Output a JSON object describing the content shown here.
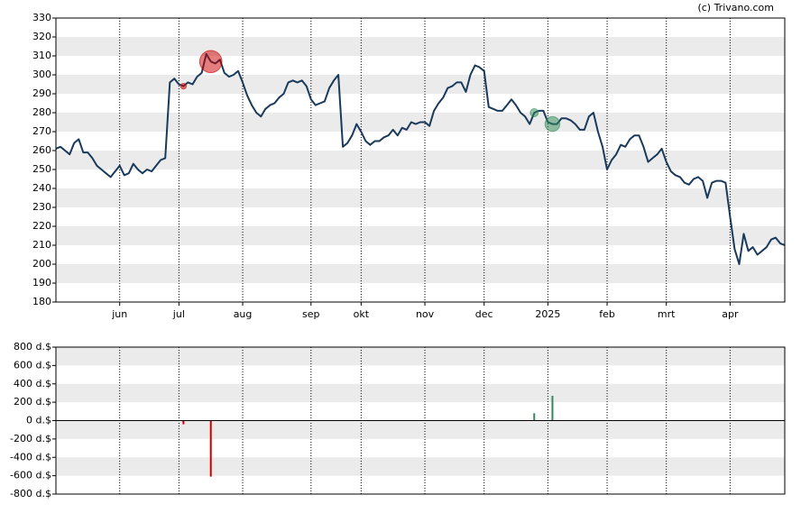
{
  "chart_data": [
    {
      "type": "line",
      "title": "(c) Trivano.com",
      "categories": [
        null,
        null,
        null,
        null,
        null,
        null,
        null,
        null,
        null,
        null,
        null,
        null,
        null,
        null,
        "jun",
        null,
        null,
        null,
        null,
        null,
        null,
        null,
        null,
        null,
        null,
        null,
        null,
        "jul",
        null,
        null,
        null,
        null,
        null,
        null,
        null,
        null,
        null,
        null,
        null,
        null,
        null,
        "aug",
        null,
        null,
        null,
        null,
        null,
        null,
        null,
        null,
        null,
        null,
        null,
        null,
        null,
        null,
        "sep",
        null,
        null,
        null,
        null,
        null,
        null,
        null,
        null,
        null,
        null,
        "okt",
        null,
        null,
        null,
        null,
        null,
        null,
        null,
        null,
        null,
        null,
        null,
        null,
        null,
        "nov",
        null,
        null,
        null,
        null,
        null,
        null,
        null,
        null,
        null,
        null,
        null,
        null,
        "dec",
        null,
        null,
        null,
        null,
        null,
        null,
        null,
        null,
        null,
        null,
        null,
        null,
        null,
        "2025",
        null,
        null,
        null,
        null,
        null,
        null,
        null,
        null,
        null,
        null,
        null,
        null,
        "feb",
        null,
        null,
        null,
        null,
        null,
        null,
        null,
        null,
        null,
        null,
        null,
        null,
        "mrt",
        null,
        null,
        null,
        null,
        null,
        null,
        null,
        null,
        null,
        null,
        null,
        null,
        null,
        "apr",
        null,
        null,
        null,
        null,
        null,
        null,
        null,
        null,
        null,
        null,
        null,
        null
      ],
      "series": [
        {
          "color": "#1a3a5c",
          "values": [
            261,
            262,
            260,
            258,
            264,
            266,
            259,
            259,
            256,
            252,
            250,
            248,
            246,
            249,
            252,
            247,
            248,
            253,
            250,
            248,
            250,
            249,
            252,
            255,
            256,
            296,
            298,
            295,
            294,
            296,
            295,
            299,
            301,
            311,
            307,
            306,
            308,
            301,
            299,
            300,
            302,
            296,
            289,
            284,
            280,
            278,
            282,
            284,
            285,
            288,
            290,
            296,
            297,
            296,
            297,
            294,
            287,
            284,
            285,
            286,
            293,
            297,
            300,
            262,
            264,
            268,
            274,
            270,
            265,
            263,
            265,
            265,
            267,
            268,
            271,
            268,
            272,
            271,
            275,
            274,
            275,
            275,
            273,
            281,
            285,
            288,
            293,
            294,
            296,
            296,
            291,
            300,
            305,
            304,
            302,
            283,
            282,
            281,
            281,
            284,
            287,
            284,
            280,
            278,
            274,
            280,
            281,
            281,
            275,
            274,
            274,
            277,
            277,
            276,
            274,
            271,
            271,
            278,
            280,
            270,
            262,
            250,
            255,
            258,
            263,
            262,
            266,
            268,
            268,
            262,
            254,
            256,
            258,
            261,
            254,
            249,
            247,
            246,
            243,
            242,
            245,
            246,
            244,
            235,
            243,
            244,
            244,
            243,
            225,
            208,
            200,
            216,
            207,
            209,
            205,
            207,
            209,
            213,
            214,
            211,
            210
          ]
        }
      ],
      "ylim": [
        180,
        330
      ],
      "yticks": [
        180,
        190,
        200,
        210,
        220,
        230,
        240,
        250,
        260,
        270,
        280,
        290,
        300,
        310,
        320,
        330
      ],
      "grid": true
    },
    {
      "type": "bar",
      "categories": [
        null,
        null,
        null,
        null,
        null,
        null,
        null,
        null,
        null,
        null,
        null,
        null,
        null,
        null,
        "jun",
        null,
        null,
        null,
        null,
        null,
        null,
        null,
        null,
        null,
        null,
        null,
        null,
        "jul",
        null,
        null,
        null,
        null,
        null,
        null,
        null,
        null,
        null,
        null,
        null,
        null,
        null,
        "aug",
        null,
        null,
        null,
        null,
        null,
        null,
        null,
        null,
        null,
        null,
        null,
        null,
        null,
        null,
        "sep",
        null,
        null,
        null,
        null,
        null,
        null,
        null,
        null,
        null,
        null,
        "okt",
        null,
        null,
        null,
        null,
        null,
        null,
        null,
        null,
        null,
        null,
        null,
        null,
        null,
        "nov",
        null,
        null,
        null,
        null,
        null,
        null,
        null,
        null,
        null,
        null,
        null,
        null,
        "dec",
        null,
        null,
        null,
        null,
        null,
        null,
        null,
        null,
        null,
        null,
        null,
        null,
        null,
        "2025",
        null,
        null,
        null,
        null,
        null,
        null,
        null,
        null,
        null,
        null,
        null,
        null,
        "feb",
        null,
        null,
        null,
        null,
        null,
        null,
        null,
        null,
        null,
        null,
        null,
        null,
        "mrt",
        null,
        null,
        null,
        null,
        null,
        null,
        null,
        null,
        null,
        null,
        null,
        null,
        null,
        "apr",
        null,
        null,
        null,
        null,
        null,
        null,
        null,
        null,
        null,
        null,
        null,
        null
      ],
      "values": [
        null,
        null,
        null,
        null,
        null,
        null,
        null,
        null,
        null,
        null,
        null,
        null,
        null,
        null,
        null,
        null,
        null,
        null,
        null,
        null,
        null,
        null,
        null,
        null,
        null,
        null,
        null,
        null,
        -40,
        null,
        null,
        null,
        null,
        null,
        -610,
        null,
        null,
        null,
        null,
        null,
        null,
        null,
        null,
        null,
        null,
        null,
        null,
        null,
        null,
        null,
        null,
        null,
        null,
        null,
        null,
        null,
        null,
        null,
        null,
        null,
        null,
        null,
        null,
        null,
        null,
        null,
        null,
        null,
        null,
        null,
        null,
        null,
        null,
        null,
        null,
        null,
        null,
        null,
        null,
        null,
        null,
        null,
        null,
        null,
        null,
        null,
        null,
        null,
        null,
        null,
        null,
        null,
        null,
        null,
        null,
        null,
        null,
        null,
        null,
        null,
        null,
        null,
        null,
        null,
        null,
        80,
        null,
        null,
        null,
        270,
        null,
        null,
        null,
        null,
        null,
        null,
        null,
        null,
        null,
        null,
        null,
        null,
        null,
        null,
        null,
        null,
        null,
        null,
        null,
        null,
        null,
        null,
        null,
        null,
        null,
        null,
        null,
        null,
        null,
        null,
        null,
        null,
        null,
        null,
        null,
        null,
        null,
        null,
        null,
        null,
        null,
        null,
        null,
        null,
        null,
        null,
        null,
        null,
        null,
        null,
        null
      ],
      "positive_color": "#2e8b57",
      "negative_color": "#cc0000",
      "ylim": [
        -800,
        800
      ],
      "yticks": [
        {
          "value": -800,
          "label": "-800 d.$"
        },
        {
          "value": -600,
          "label": "-600 d.$"
        },
        {
          "value": -400,
          "label": "-400 d.$"
        },
        {
          "value": -200,
          "label": "-200 d.$"
        },
        {
          "value": 0,
          "label": "0 d.$"
        },
        {
          "value": 200,
          "label": "200 d.$"
        },
        {
          "value": 400,
          "label": "400 d.$"
        },
        {
          "value": 600,
          "label": "600 d.$"
        },
        {
          "value": 800,
          "label": "800 d.$"
        }
      ],
      "grid": true
    }
  ]
}
